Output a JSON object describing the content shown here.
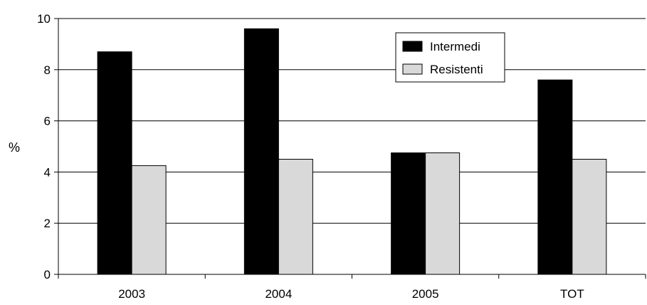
{
  "chart_data": {
    "type": "bar",
    "title": "",
    "xlabel": "",
    "ylabel": "%",
    "ylim": [
      0,
      10
    ],
    "yticks": [
      0,
      2,
      4,
      6,
      8,
      10
    ],
    "grid": true,
    "legend_position": "top-right",
    "categories": [
      "2003",
      "2004",
      "2005",
      "TOT"
    ],
    "series": [
      {
        "name": "Intermedi",
        "color": "#000000",
        "values": [
          8.7,
          9.6,
          4.75,
          7.6
        ]
      },
      {
        "name": "Resistenti",
        "color": "#d9d9d9",
        "values": [
          4.25,
          4.5,
          4.75,
          4.5
        ]
      }
    ]
  }
}
